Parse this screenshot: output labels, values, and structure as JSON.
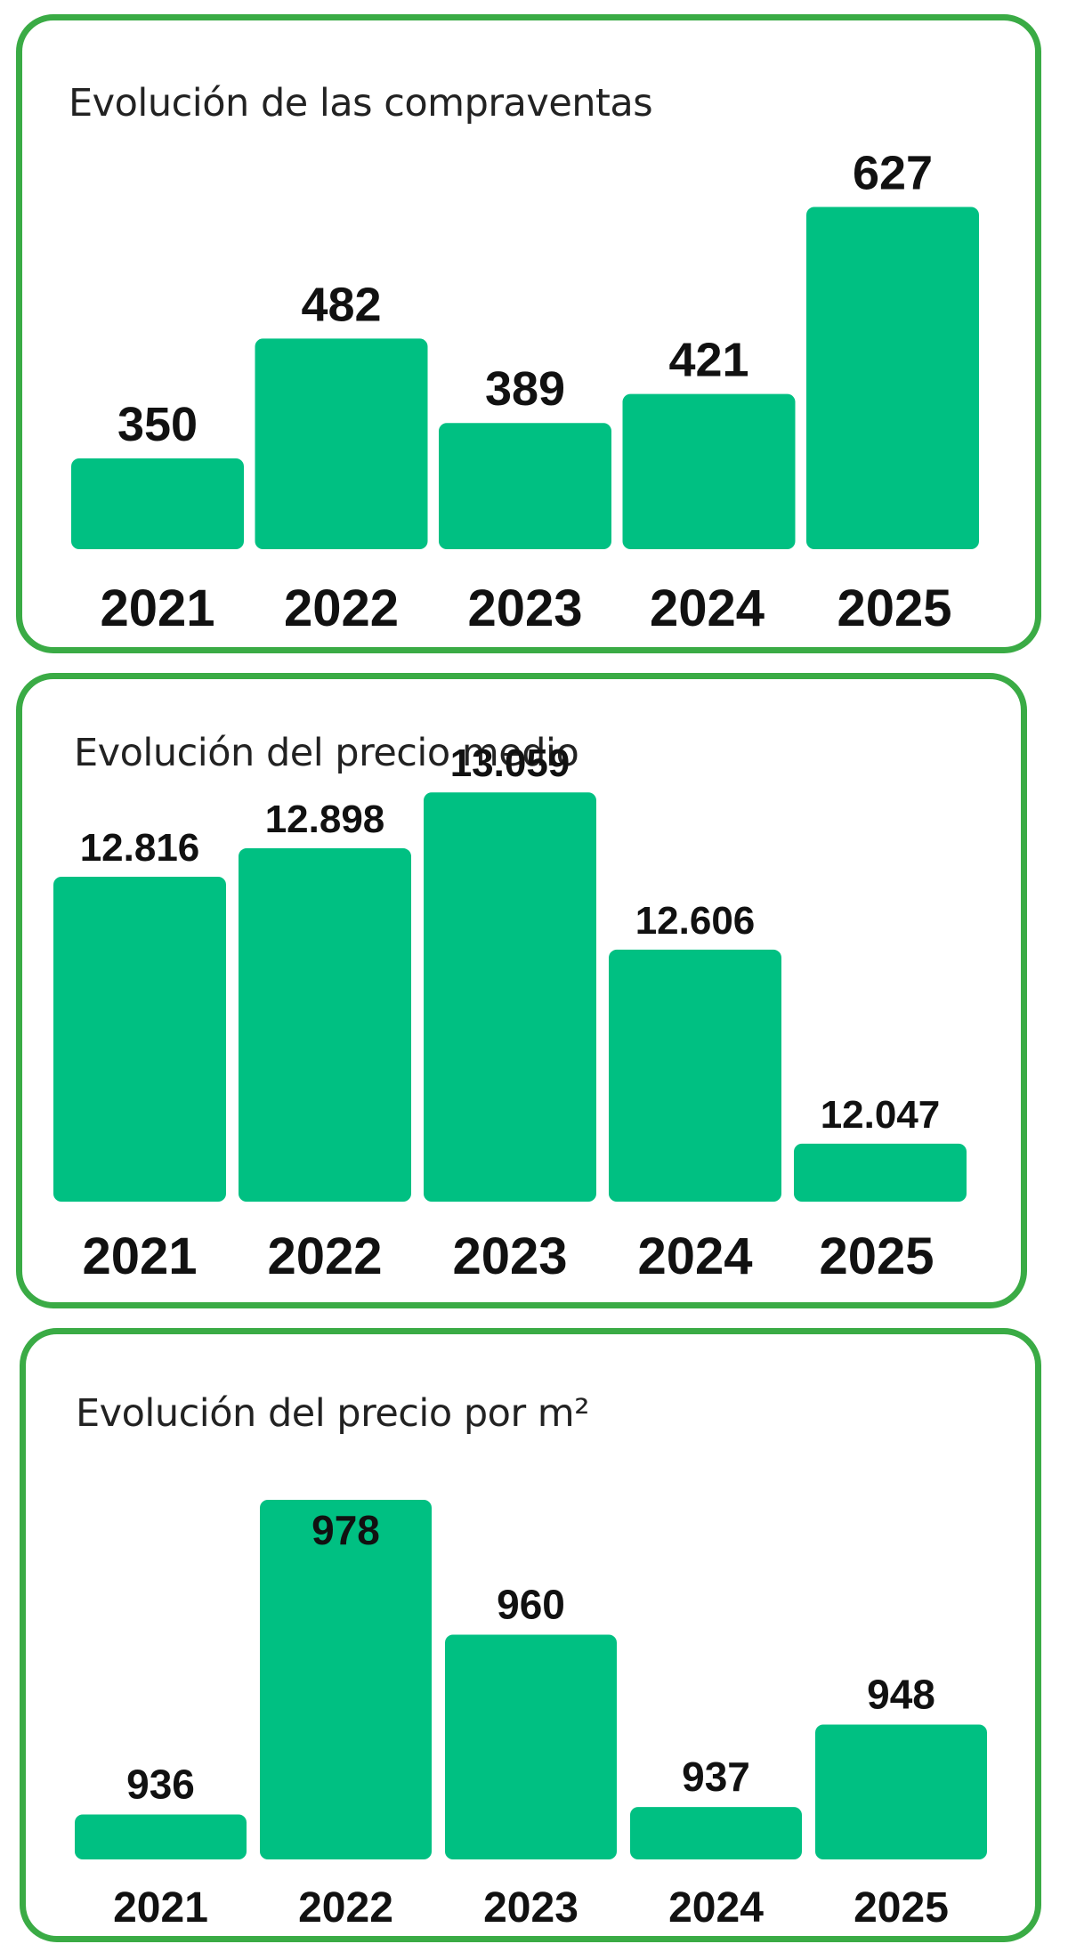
{
  "colors": {
    "bar": "#00c082",
    "border": "#3aab45",
    "text": "#111111"
  },
  "chart_data": [
    {
      "type": "bar",
      "title": "Evolución de las compraventas",
      "categories": [
        "2021",
        "2022",
        "2023",
        "2024",
        "2025"
      ],
      "values": [
        350,
        482,
        389,
        421,
        627
      ],
      "value_labels": [
        "350",
        "482",
        "389",
        "421",
        "627"
      ],
      "xlabel": "",
      "ylabel": "",
      "ylim": [
        250,
        650
      ],
      "grid": false
    },
    {
      "type": "bar",
      "title": "Evolución del precio medio",
      "categories": [
        "2021",
        "2022",
        "2023",
        "2024",
        "2025"
      ],
      "values": [
        12816,
        12898,
        13059,
        12606,
        12047
      ],
      "value_labels": [
        "12.816",
        "12.898",
        "13.059",
        "12.606",
        "12.047"
      ],
      "xlabel": "",
      "ylabel": "",
      "ylim": [
        11880,
        12816
      ],
      "grid": false
    },
    {
      "type": "bar",
      "title": "Evolución del precio por m²",
      "categories": [
        "2021",
        "2022",
        "2023",
        "2024",
        "2025"
      ],
      "values": [
        936,
        978,
        960,
        937,
        948
      ],
      "value_labels": [
        "936",
        "978",
        "960",
        "937",
        "948"
      ],
      "xlabel": "",
      "ylabel": "",
      "ylim": [
        930,
        978
      ],
      "grid": false
    }
  ]
}
